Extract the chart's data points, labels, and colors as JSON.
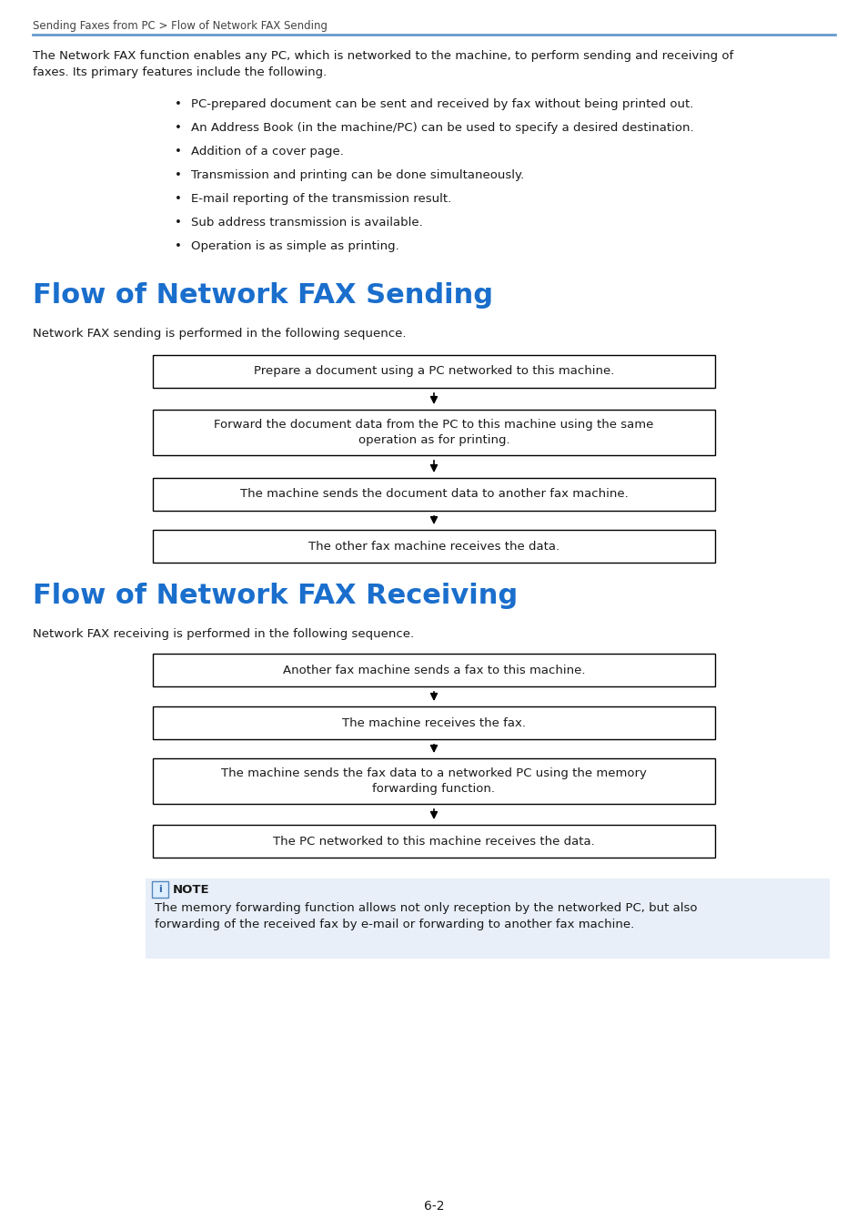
{
  "bg_color": "#ffffff",
  "header_text": "Sending Faxes from PC > Flow of Network FAX Sending",
  "header_line_color": "#6699cc",
  "intro_text": "The Network FAX function enables any PC, which is networked to the machine, to perform sending and receiving of\nfaxes. Its primary features include the following.",
  "bullets": [
    "PC-prepared document can be sent and received by fax without being printed out.",
    "An Address Book (in the machine/PC) can be used to specify a desired destination.",
    "Addition of a cover page.",
    "Transmission and printing can be done simultaneously.",
    "E-mail reporting of the transmission result.",
    "Sub address transmission is available.",
    "Operation is as simple as printing."
  ],
  "section1_title": "Flow of Network FAX Sending",
  "section1_subtitle": "Network FAX sending is performed in the following sequence.",
  "sending_boxes": [
    "Prepare a document using a PC networked to this machine.",
    "Forward the document data from the PC to this machine using the same\noperation as for printing.",
    "The machine sends the document data to another fax machine.",
    "The other fax machine receives the data."
  ],
  "section2_title": "Flow of Network FAX Receiving",
  "section2_subtitle": "Network FAX receiving is performed in the following sequence.",
  "receiving_boxes": [
    "Another fax machine sends a fax to this machine.",
    "The machine receives the fax.",
    "The machine sends the fax data to a networked PC using the memory\nforwarding function.",
    "The PC networked to this machine receives the data."
  ],
  "note_bg": "#e8eff8",
  "note_title": "NOTE",
  "note_text": "The memory forwarding function allows not only reception by the networked PC, but also\nforwarding of the received fax by e-mail or forwarding to another fax machine.",
  "blue_color": "#1a6ecc",
  "black_color": "#1a1a1a",
  "text_color": "#333333",
  "box_border_color": "#000000",
  "footer_text": "6-2"
}
